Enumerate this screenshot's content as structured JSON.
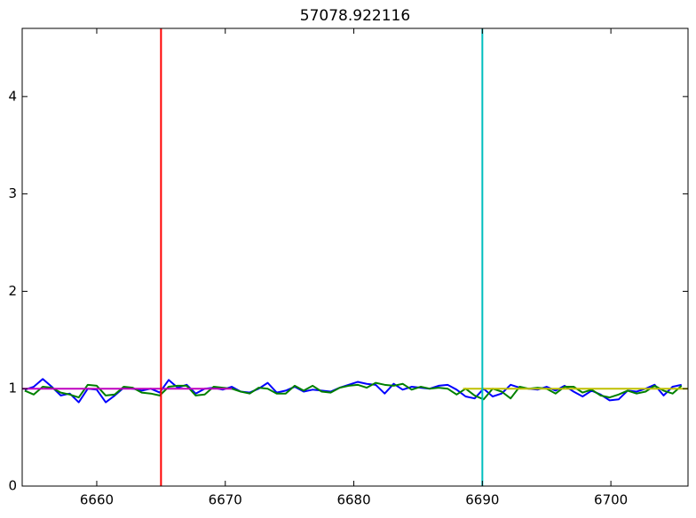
{
  "chart_data": {
    "type": "line",
    "title": "57078.922116",
    "xlim": [
      6654.2,
      6706
    ],
    "ylim": [
      0,
      4.7
    ],
    "xticks": [
      6660,
      6670,
      6680,
      6690,
      6700
    ],
    "yticks": [
      0,
      1,
      2,
      3,
      4
    ],
    "grid": false,
    "x": [
      6654.4,
      6655.1,
      6655.8,
      6656.5,
      6657.2,
      6657.9,
      6658.6,
      6659.3,
      6660.0,
      6660.7,
      6661.4,
      6662.1,
      6662.8,
      6663.5,
      6664.2,
      6664.9,
      6665.6,
      6666.3,
      6667.0,
      6667.7,
      6668.4,
      6669.1,
      6669.8,
      6670.5,
      6671.2,
      6671.9,
      6672.6,
      6673.3,
      6674.0,
      6674.7,
      6675.4,
      6676.1,
      6676.8,
      6677.5,
      6678.2,
      6678.9,
      6679.6,
      6680.3,
      6681.0,
      6681.7,
      6682.4,
      6683.1,
      6683.8,
      6684.5,
      6685.2,
      6685.9,
      6686.6,
      6687.3,
      6688.0,
      6688.7,
      6689.4,
      6690.1,
      6690.8,
      6691.5,
      6692.2,
      6692.9,
      6693.6,
      6694.3,
      6695.0,
      6695.7,
      6696.4,
      6697.1,
      6697.8,
      6698.5,
      6699.2,
      6699.9,
      6700.6,
      6701.3,
      6702.0,
      6702.7,
      6703.4,
      6704.1,
      6704.8,
      6705.5
    ],
    "series": [
      {
        "color": "#0000ff",
        "values": [
          0.99,
          1.02,
          1.1,
          1.02,
          0.93,
          0.95,
          0.86,
          1.0,
          0.99,
          0.86,
          0.93,
          1.01,
          1.0,
          0.98,
          1.0,
          0.96,
          1.09,
          1.01,
          1.04,
          0.95,
          1.0,
          1.01,
          0.99,
          1.02,
          0.97,
          0.96,
          1.0,
          1.06,
          0.96,
          0.98,
          1.02,
          0.97,
          0.99,
          0.98,
          0.97,
          1.01,
          1.04,
          1.07,
          1.05,
          1.04,
          0.95,
          1.05,
          0.99,
          1.02,
          1.01,
          1.0,
          1.03,
          1.04,
          0.99,
          0.92,
          0.9,
          1.0,
          0.92,
          0.95,
          1.04,
          1.01,
          1.0,
          0.99,
          1.02,
          0.98,
          1.03,
          0.97,
          0.92,
          0.98,
          0.94,
          0.88,
          0.89,
          0.98,
          0.97,
          1.0,
          1.04,
          0.93,
          1.02,
          1.04
        ]
      },
      {
        "color": "#008000",
        "values": [
          0.98,
          0.94,
          1.02,
          1.01,
          0.96,
          0.94,
          0.91,
          1.04,
          1.03,
          0.93,
          0.94,
          1.02,
          1.01,
          0.96,
          0.95,
          0.93,
          1.02,
          1.03,
          1.03,
          0.93,
          0.94,
          1.02,
          1.01,
          1.0,
          0.97,
          0.95,
          1.01,
          1.0,
          0.95,
          0.95,
          1.03,
          0.98,
          1.03,
          0.97,
          0.96,
          1.01,
          1.03,
          1.04,
          1.01,
          1.06,
          1.04,
          1.03,
          1.05,
          0.99,
          1.02,
          1.0,
          1.01,
          1.0,
          0.94,
          1.0,
          0.93,
          0.89,
          1.0,
          0.97,
          0.9,
          1.02,
          1.0,
          1.01,
          1.0,
          0.95,
          1.02,
          1.02,
          0.96,
          0.99,
          0.93,
          0.91,
          0.94,
          0.98,
          0.95,
          0.97,
          1.03,
          0.98,
          0.95,
          1.03
        ]
      },
      {
        "color": "#bf00bf",
        "x": [
          6654.2,
          6670.5
        ],
        "values": [
          1,
          1
        ]
      },
      {
        "color": "#bfbf00",
        "x": [
          6688.5,
          6706
        ],
        "values": [
          1,
          1
        ]
      }
    ],
    "vlines": [
      {
        "x": 6665,
        "color": "#ff0000"
      },
      {
        "x": 6690,
        "color": "#00bfbf"
      }
    ]
  }
}
